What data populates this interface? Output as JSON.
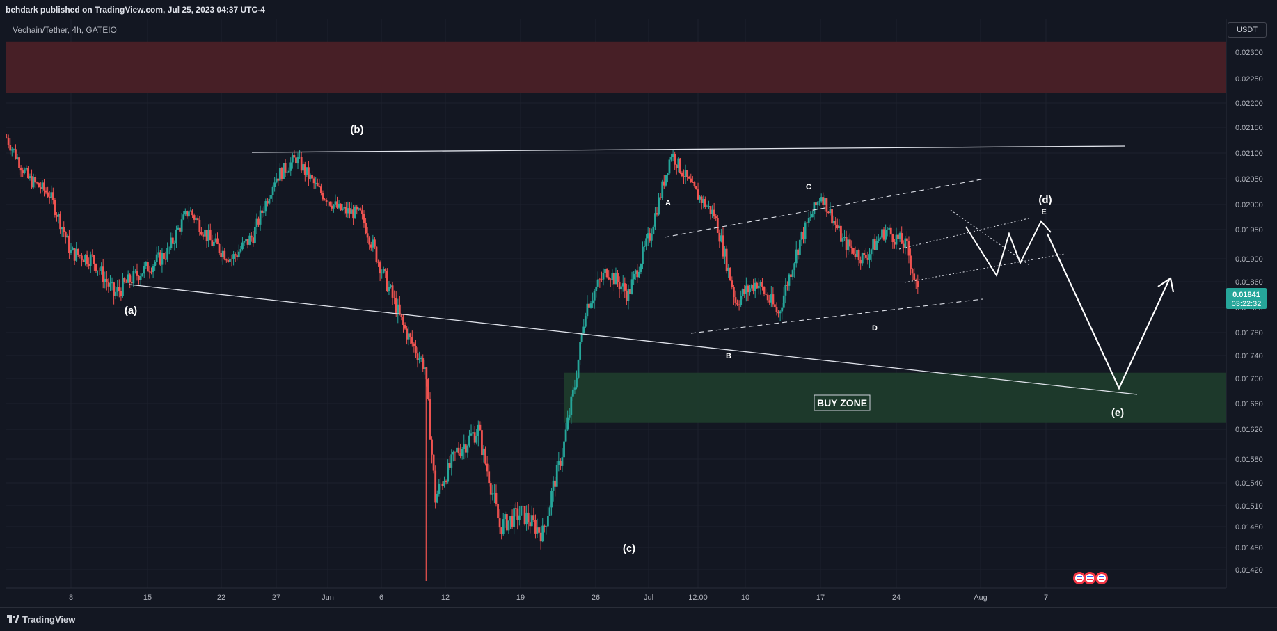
{
  "header": {
    "publisher": "behdark published on TradingView.com, Jul 25, 2023 04:37 UTC-4"
  },
  "symbol": {
    "label": "Vechain/Tether, 4h, GATEIO"
  },
  "currency_button": "USDT",
  "footer": {
    "logo_text": "TradingView"
  },
  "colors": {
    "background": "#131722",
    "up": "#26a69a",
    "down": "#ef5350",
    "resistance_zone": "#4a2027",
    "buy_zone": "#1e3b2c",
    "price_badge": "#26a69a"
  },
  "chart_data": {
    "type": "candlestick",
    "interval": "4h",
    "x_ticks": [
      "8",
      "15",
      "22",
      "27",
      "Jun",
      "6",
      "12",
      "19",
      "26",
      "Jul",
      "12:00",
      "10",
      "17",
      "24",
      "Aug",
      "7"
    ],
    "y_ticks": [
      "0.02300",
      "0.02250",
      "0.02200",
      "0.02150",
      "0.02100",
      "0.02050",
      "0.02000",
      "0.01950",
      "0.01900",
      "0.01860",
      "0.01820",
      "0.01780",
      "0.01740",
      "0.01700",
      "0.01660",
      "0.01620",
      "0.01580",
      "0.01540",
      "0.01510",
      "0.01480",
      "0.01450",
      "0.01420"
    ],
    "current_price": "0.01841",
    "countdown": "03:22:32",
    "ylim": [
      0.0142,
      0.0232
    ],
    "zones": [
      {
        "name": "resistance",
        "from": 0.0222,
        "to": 0.0232
      },
      {
        "name": "buy",
        "label": "BUY ZONE",
        "from": 0.0163,
        "to": 0.0171
      }
    ],
    "price_path": [
      [
        "May 2",
        0.0213
      ],
      [
        "May 4",
        0.0205
      ],
      [
        "May 6",
        0.0202
      ],
      [
        "May 8",
        0.0191
      ],
      [
        "May 10",
        0.019
      ],
      [
        "May 12",
        0.0184
      ],
      [
        "May 14",
        0.0187
      ],
      [
        "May 17",
        0.0191
      ],
      [
        "May 19",
        0.0199
      ],
      [
        "May 21",
        0.0193
      ],
      [
        "May 23",
        0.019
      ],
      [
        "May 25",
        0.0194
      ],
      [
        "May 27",
        0.0205
      ],
      [
        "May 29",
        0.0209
      ],
      [
        "May 31",
        0.0203
      ],
      [
        "Jun 2",
        0.0199
      ],
      [
        "Jun 4",
        0.0198
      ],
      [
        "Jun 6",
        0.0188
      ],
      [
        "Jun 8",
        0.0179
      ],
      [
        "Jun 10",
        0.0172
      ],
      [
        "Jun 11",
        0.0152
      ],
      [
        "Jun 13",
        0.0159
      ],
      [
        "Jun 15",
        0.0162
      ],
      [
        "Jun 17",
        0.0148
      ],
      [
        "Jun 19",
        0.015
      ],
      [
        "Jun 21",
        0.0147
      ],
      [
        "Jun 23",
        0.016
      ],
      [
        "Jun 24",
        0.0169
      ],
      [
        "Jun 25",
        0.0182
      ],
      [
        "Jun 27",
        0.0188
      ],
      [
        "Jun 29",
        0.0184
      ],
      [
        "Jul 1",
        0.0194
      ],
      [
        "Jul 3",
        0.021
      ],
      [
        "Jul 5",
        0.0203
      ],
      [
        "Jul 7",
        0.0198
      ],
      [
        "Jul 9",
        0.0183
      ],
      [
        "Jul 11",
        0.0186
      ],
      [
        "Jul 13",
        0.0181
      ],
      [
        "Jul 15",
        0.0193
      ],
      [
        "Jul 17",
        0.0202
      ],
      [
        "Jul 19",
        0.0193
      ],
      [
        "Jul 21",
        0.019
      ],
      [
        "Jul 23",
        0.0195
      ],
      [
        "Jul 25",
        0.0192
      ],
      [
        "Jul 26",
        0.0184
      ]
    ],
    "wave_labels": [
      "(a)",
      "(b)",
      "(c)",
      "(d)",
      "(e)"
    ],
    "sub_wave_labels": [
      "A",
      "B",
      "C",
      "D",
      "E"
    ]
  }
}
